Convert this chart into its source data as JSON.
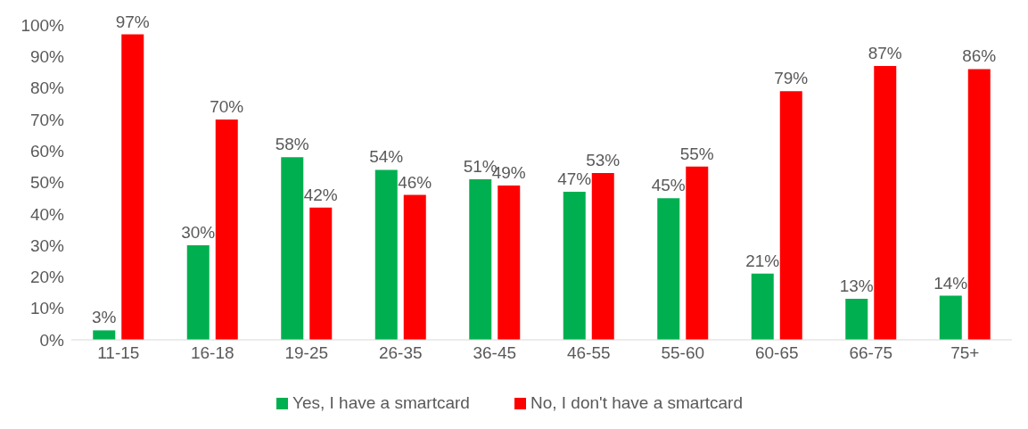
{
  "chart_data": {
    "type": "bar",
    "categories": [
      "11-15",
      "16-18",
      "19-25",
      "26-35",
      "36-45",
      "46-55",
      "55-60",
      "60-65",
      "66-75",
      "75+"
    ],
    "series": [
      {
        "name": "Yes, I have a smartcard",
        "color": "#00b050",
        "values": [
          3,
          30,
          58,
          54,
          51,
          47,
          45,
          21,
          13,
          14
        ],
        "value_labels": [
          "3%",
          "30%",
          "58%",
          "54%",
          "51%",
          "47%",
          "45%",
          "21%",
          "13%",
          "14%"
        ]
      },
      {
        "name": "No, I don't have a smartcard",
        "color": "#ff0000",
        "values": [
          97,
          70,
          42,
          46,
          49,
          53,
          55,
          79,
          87,
          86
        ],
        "value_labels": [
          "97%",
          "70%",
          "42%",
          "46%",
          "49%",
          "53%",
          "55%",
          "79%",
          "87%",
          "86%"
        ]
      }
    ],
    "ylim": [
      0,
      100
    ],
    "yticks": [
      {
        "value": 0,
        "label": "0%"
      },
      {
        "value": 10,
        "label": "10%"
      },
      {
        "value": 20,
        "label": "20%"
      },
      {
        "value": 30,
        "label": "30%"
      },
      {
        "value": 40,
        "label": "40%"
      },
      {
        "value": 50,
        "label": "50%"
      },
      {
        "value": 60,
        "label": "60%"
      },
      {
        "value": 70,
        "label": "70%"
      },
      {
        "value": 80,
        "label": "80%"
      },
      {
        "value": 90,
        "label": "90%"
      },
      {
        "value": 100,
        "label": "100%"
      }
    ],
    "grid": false,
    "legend": "bottom"
  }
}
